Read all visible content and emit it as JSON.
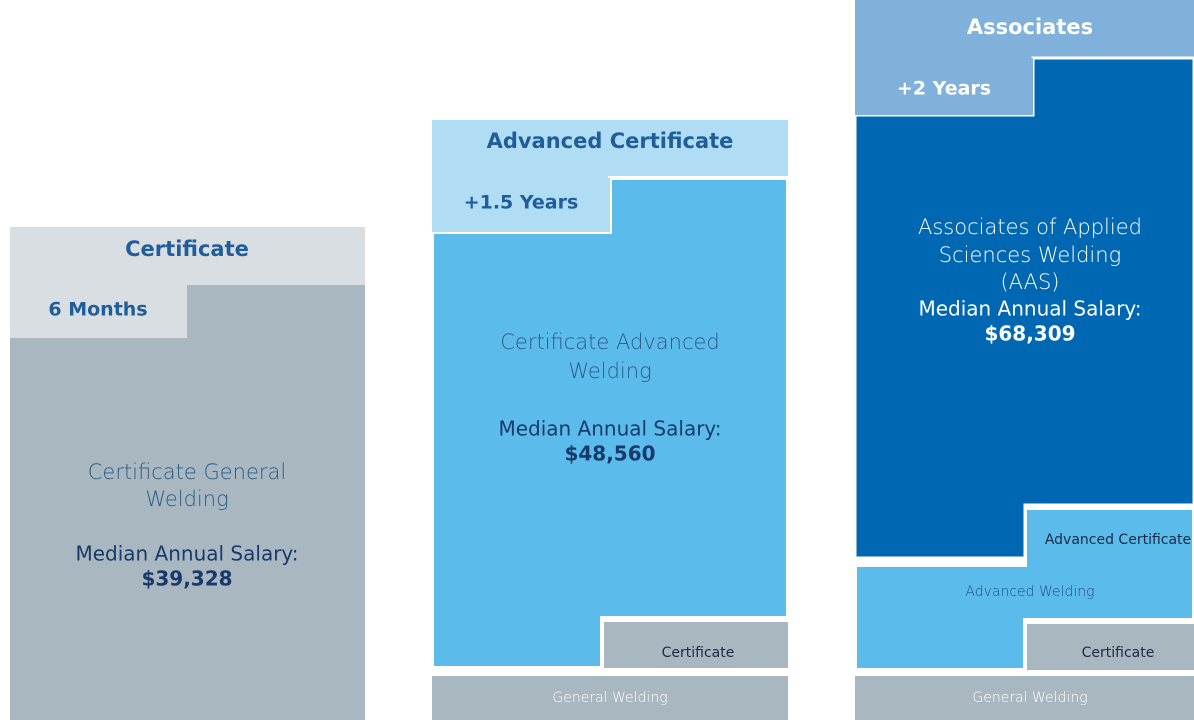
{
  "columns": [
    {
      "header": "Certificate",
      "duration": "6 Months",
      "program": [
        "Certificate General",
        "Welding"
      ],
      "salary_label": "Median Annual Salary:",
      "salary": "$39,328",
      "steps": []
    },
    {
      "header": "Advanced Certificate",
      "duration": "+1.5 Years",
      "program": [
        "Certificate Advanced",
        "Welding"
      ],
      "salary_label": "Median Annual Salary:",
      "salary": "$48,560",
      "steps": [
        "Certificate",
        "General Welding"
      ]
    },
    {
      "header": "Associates",
      "duration": "+2 Years",
      "program": [
        "Associates of Applied",
        "Sciences Welding",
        "(AAS)"
      ],
      "salary_label": "Median Annual Salary:",
      "salary": "$68,309",
      "steps": [
        "Advanced Certificate",
        "Advanced Welding",
        "Certificate",
        "General Welding"
      ]
    }
  ]
}
